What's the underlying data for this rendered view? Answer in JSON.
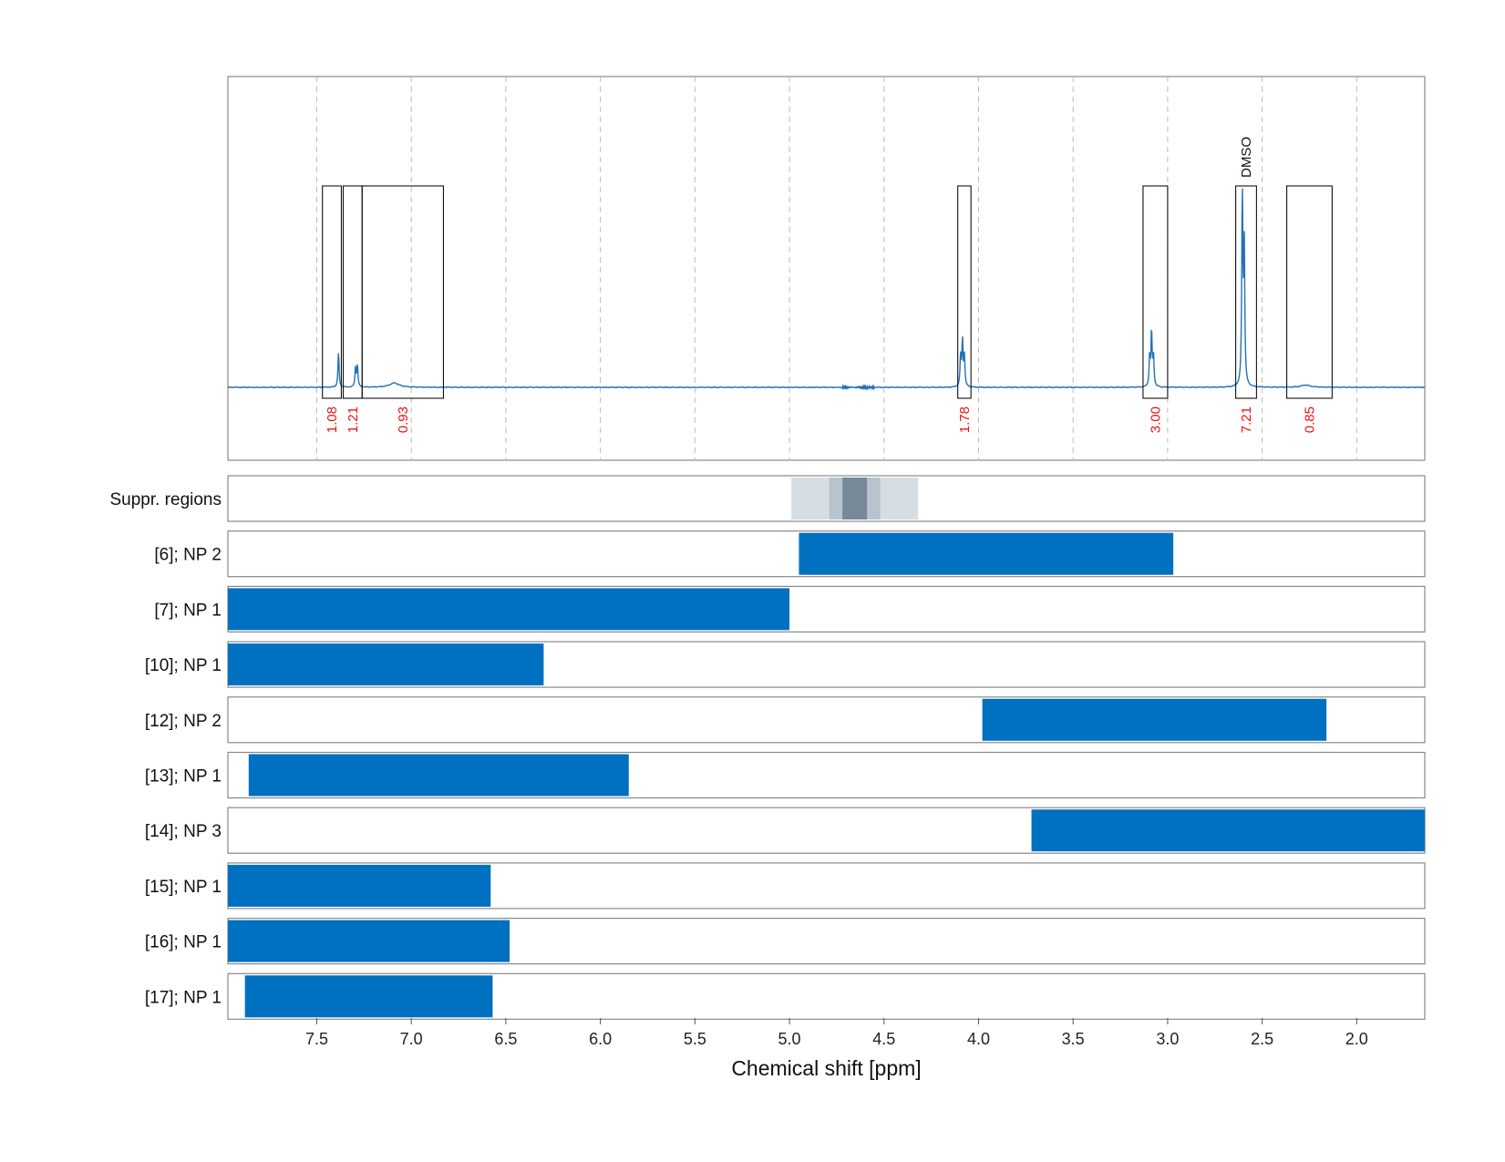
{
  "chart_data": {
    "type": "nmr-spectrum-with-range-bars",
    "xlabel": "Chemical shift [ppm]",
    "xlim": [
      7.97,
      1.64
    ],
    "x_ticks": [
      "7.5",
      "7.0",
      "6.5",
      "6.0",
      "5.5",
      "5.0",
      "4.5",
      "4.0",
      "3.5",
      "3.0",
      "2.5",
      "2.0"
    ],
    "grid": true,
    "colors": {
      "spectrum": "#2271b5",
      "bar": "#0070c0",
      "integral": "#ee1111",
      "frame": "#888888"
    },
    "spectrum_peaks": [
      {
        "ppm": 7.385,
        "height": 0.16
      },
      {
        "ppm": 7.295,
        "height": 0.09
      },
      {
        "ppm": 7.285,
        "height": 0.1
      },
      {
        "ppm": 7.09,
        "height": 0.02,
        "broad": true
      },
      {
        "ppm": 4.095,
        "height": 0.14
      },
      {
        "ppm": 4.085,
        "height": 0.21
      },
      {
        "ppm": 4.075,
        "height": 0.14
      },
      {
        "ppm": 3.095,
        "height": 0.14
      },
      {
        "ppm": 3.085,
        "height": 0.25
      },
      {
        "ppm": 3.075,
        "height": 0.14
      },
      {
        "ppm": 2.605,
        "height": 0.88
      },
      {
        "ppm": 2.595,
        "height": 0.65
      },
      {
        "ppm": 2.27,
        "height": 0.01,
        "broad": true
      }
    ],
    "integration_regions": [
      {
        "from": 7.47,
        "to": 7.37,
        "value": "1.08"
      },
      {
        "from": 7.36,
        "to": 7.26,
        "value": "1.21"
      },
      {
        "from": 7.26,
        "to": 6.83,
        "value": "0.93"
      },
      {
        "from": 4.11,
        "to": 4.04,
        "value": "1.78"
      },
      {
        "from": 3.13,
        "to": 3.0,
        "value": "3.00"
      },
      {
        "from": 2.64,
        "to": 2.53,
        "value": "7.21",
        "annotation": "DMSO"
      },
      {
        "from": 2.37,
        "to": 2.13,
        "value": "0.85"
      }
    ],
    "suppression_label": "Suppr. regions",
    "suppression_regions": [
      {
        "from": 4.99,
        "to": 4.32,
        "shade": "light"
      },
      {
        "from": 4.79,
        "to": 4.52,
        "shade": "medium"
      },
      {
        "from": 4.72,
        "to": 4.59,
        "shade": "dark"
      }
    ],
    "range_rows": [
      {
        "label": "[6]; NP 2",
        "from": 4.95,
        "to": 2.97
      },
      {
        "label": "[7]; NP 1",
        "from": 7.97,
        "to": 5.0
      },
      {
        "label": "[10]; NP 1",
        "from": 7.97,
        "to": 6.3
      },
      {
        "label": "[12]; NP 2",
        "from": 3.98,
        "to": 2.16
      },
      {
        "label": "[13]; NP 1",
        "from": 7.86,
        "to": 5.85
      },
      {
        "label": "[14]; NP 3",
        "from": 3.72,
        "to": 1.64
      },
      {
        "label": "[15]; NP 1",
        "from": 7.97,
        "to": 6.58
      },
      {
        "label": "[16]; NP 1",
        "from": 7.97,
        "to": 6.48
      },
      {
        "label": "[17]; NP 1",
        "from": 7.88,
        "to": 6.57
      }
    ]
  }
}
